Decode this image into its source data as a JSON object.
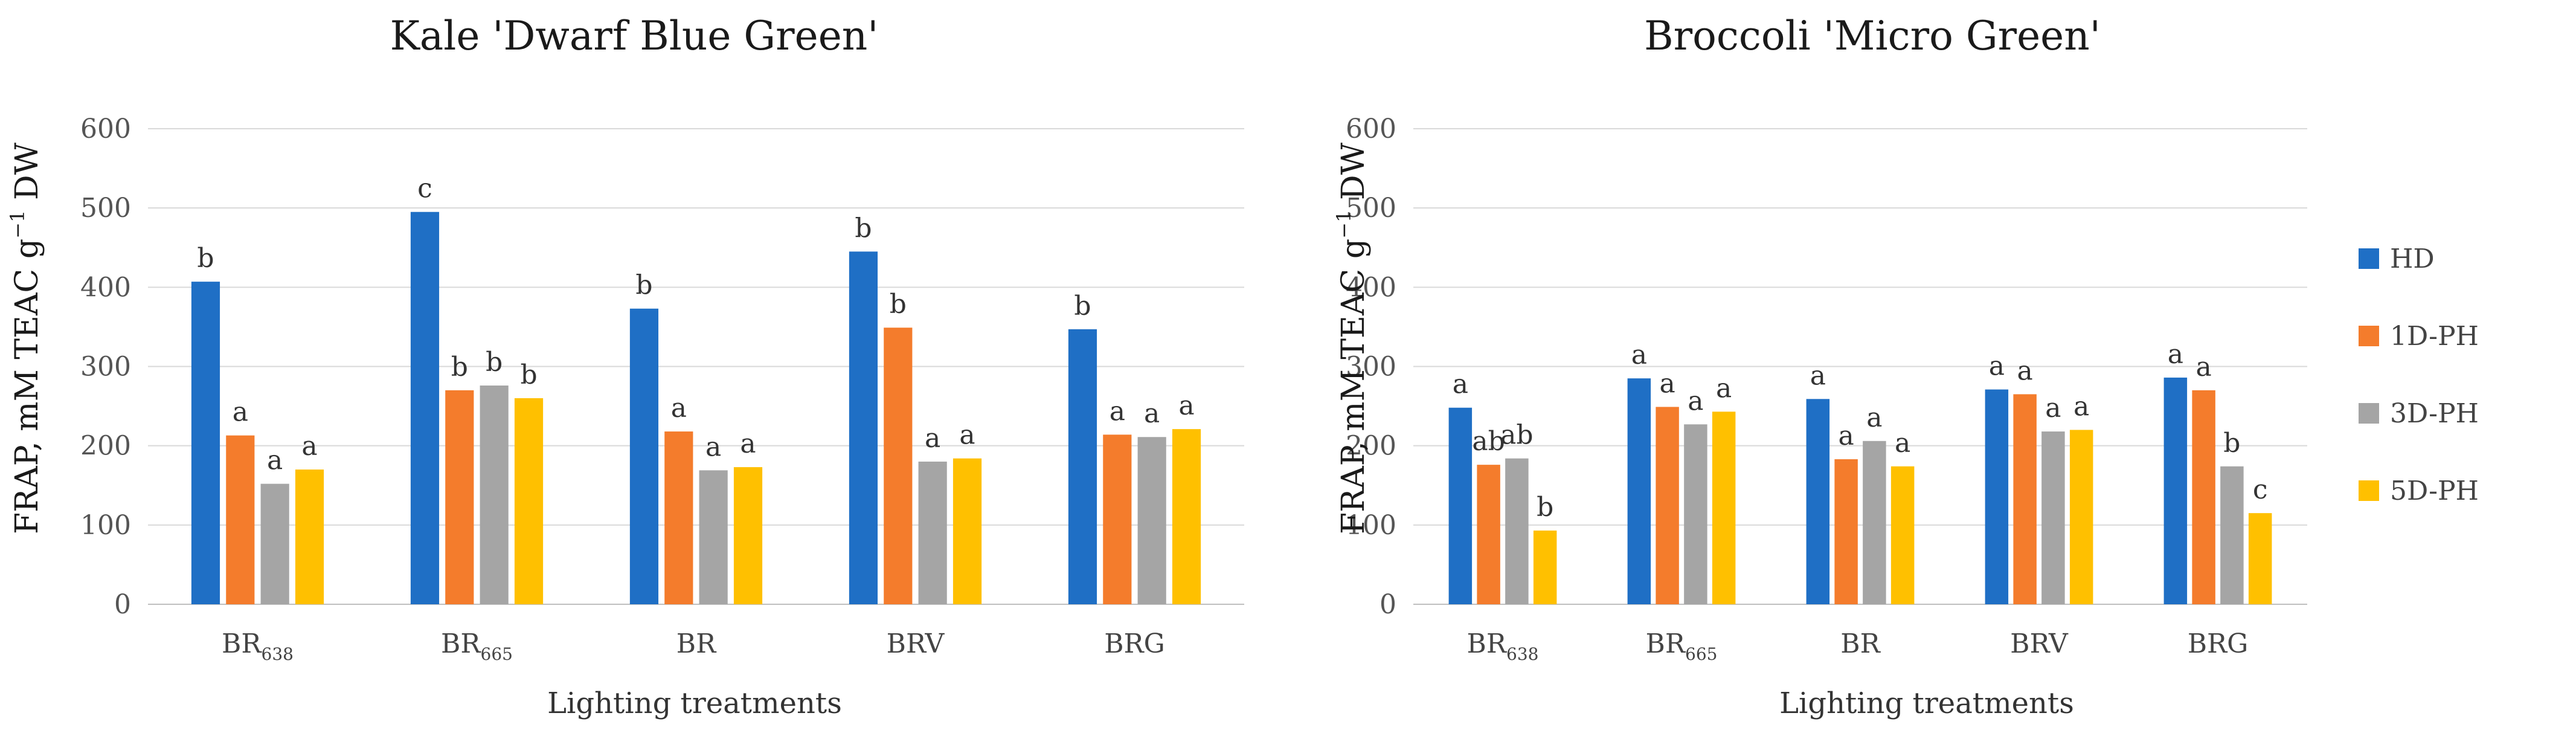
{
  "legend": {
    "entries": [
      {
        "name": "HD",
        "color": "#1f6fc5"
      },
      {
        "name": "1D-PH",
        "color": "#f47c2c"
      },
      {
        "name": "3D-PH",
        "color": "#a5a5a5"
      },
      {
        "name": "5D-PH",
        "color": "#ffc000"
      }
    ]
  },
  "chart_data": [
    {
      "type": "bar",
      "title": "Kale 'Dwarf Blue Green'",
      "xlabel": "Lighting treatments",
      "ylabel": {
        "main": "FRAP, mM TEAC g",
        "sup": "−1",
        "tail": " DW"
      },
      "ylim": [
        0,
        600
      ],
      "yticks": [
        "0",
        "100",
        "200",
        "300",
        "400",
        "500",
        "600"
      ],
      "categories": [
        {
          "base": "BR",
          "sub": "638"
        },
        {
          "base": "BR",
          "sub": "665"
        },
        {
          "base": "BR",
          "sub": ""
        },
        {
          "base": "BRV",
          "sub": ""
        },
        {
          "base": "BRG",
          "sub": ""
        }
      ],
      "series": [
        {
          "name": "HD",
          "values": [
            407,
            495,
            373,
            445,
            347
          ],
          "letters": [
            "b",
            "c",
            "b",
            "b",
            "b"
          ]
        },
        {
          "name": "1D-PH",
          "values": [
            213,
            270,
            218,
            349,
            214
          ],
          "letters": [
            "a",
            "b",
            "a",
            "b",
            "a"
          ]
        },
        {
          "name": "3D-PH",
          "values": [
            152,
            276,
            169,
            180,
            211
          ],
          "letters": [
            "a",
            "b",
            "a",
            "a",
            "a"
          ]
        },
        {
          "name": "5D-PH",
          "values": [
            170,
            260,
            173,
            184,
            221
          ],
          "letters": [
            "a",
            "b",
            "a",
            "a",
            "a"
          ]
        }
      ]
    },
    {
      "type": "bar",
      "title": "Broccoli 'Micro Green'",
      "xlabel": "Lighting treatments",
      "ylabel": {
        "main": "FRAP, mM TEAC g",
        "sup": "−1",
        "tail": " DW"
      },
      "ylim": [
        0,
        600
      ],
      "yticks": [
        "0",
        "100",
        "200",
        "300",
        "400",
        "500",
        "600"
      ],
      "categories": [
        {
          "base": "BR",
          "sub": "638"
        },
        {
          "base": "BR",
          "sub": "665"
        },
        {
          "base": "BR",
          "sub": ""
        },
        {
          "base": "BRV",
          "sub": ""
        },
        {
          "base": "BRG",
          "sub": ""
        }
      ],
      "series": [
        {
          "name": "HD",
          "values": [
            248,
            285,
            259,
            271,
            286
          ],
          "letters": [
            "a",
            "a",
            "a",
            "a",
            "a"
          ]
        },
        {
          "name": "1D-PH",
          "values": [
            176,
            249,
            183,
            265,
            270
          ],
          "letters": [
            "ab",
            "a",
            "a",
            "a",
            "a"
          ]
        },
        {
          "name": "3D-PH",
          "values": [
            184,
            227,
            206,
            218,
            174
          ],
          "letters": [
            "ab",
            "a",
            "a",
            "a",
            "b"
          ]
        },
        {
          "name": "5D-PH",
          "values": [
            93,
            243,
            174,
            220,
            115
          ],
          "letters": [
            "b",
            "a",
            "a",
            "a",
            "c"
          ]
        }
      ]
    }
  ]
}
